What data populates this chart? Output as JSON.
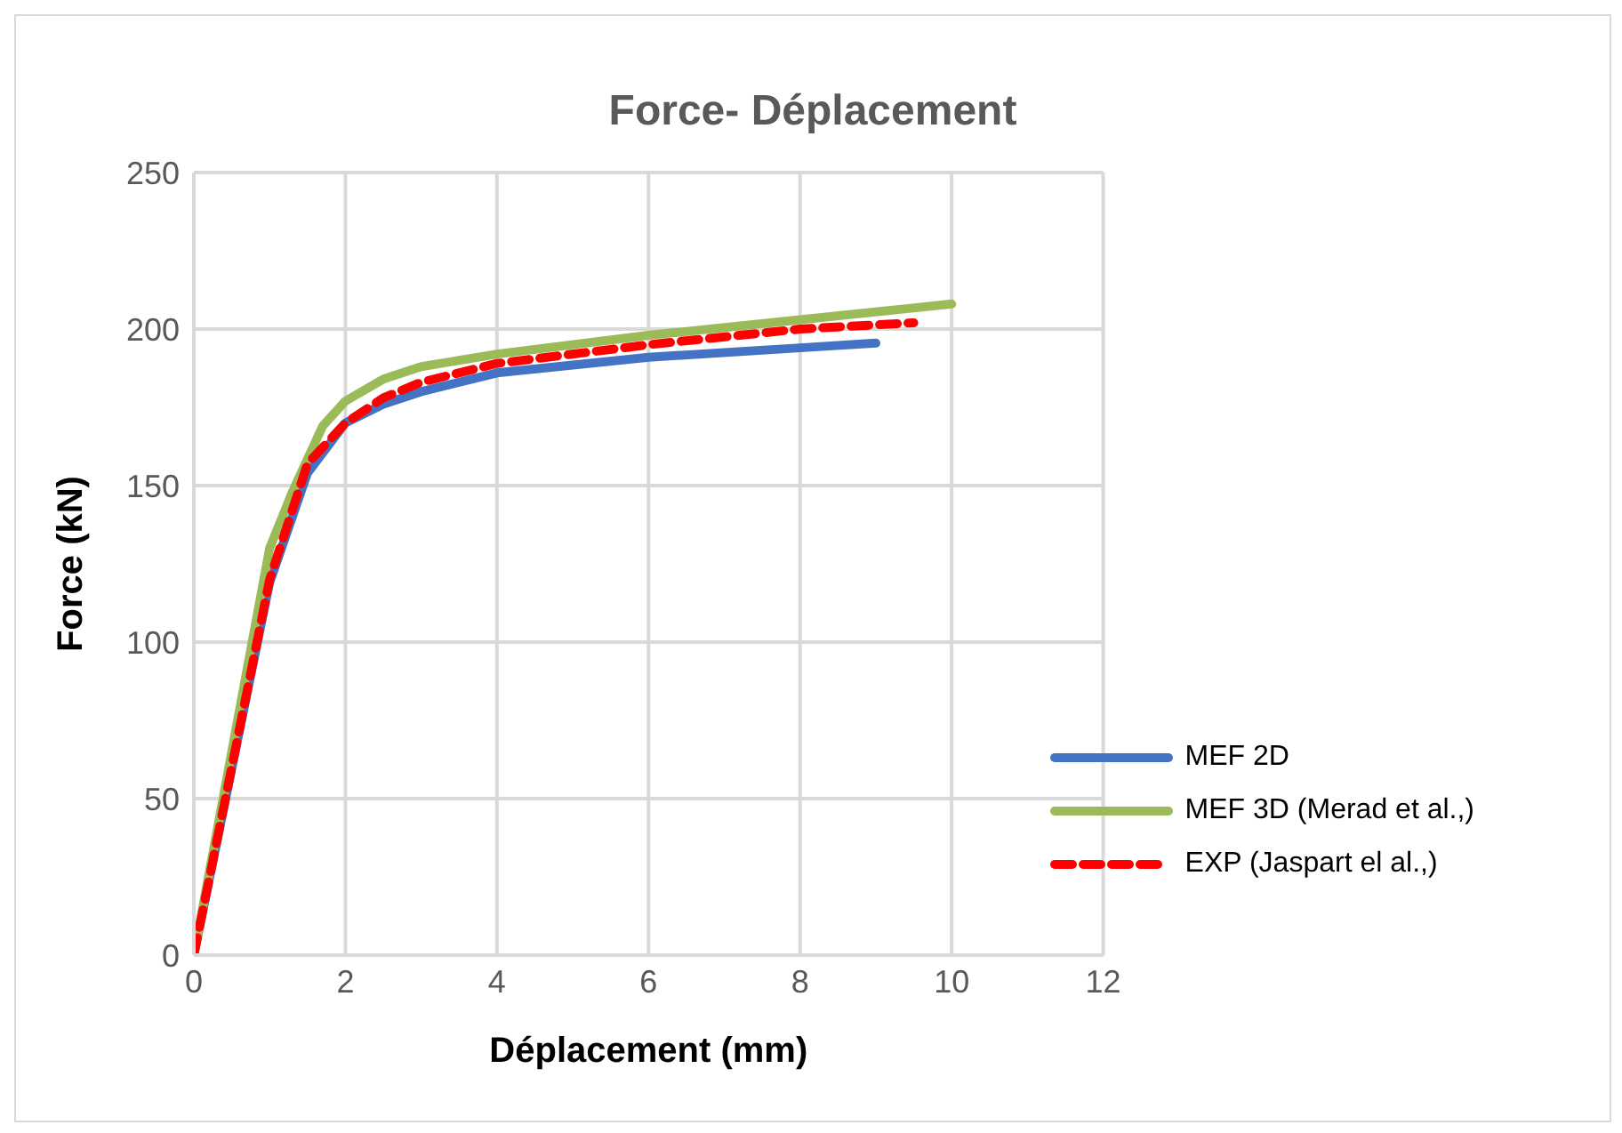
{
  "chart_data": {
    "type": "line",
    "title": "Force- Déplacement",
    "xlabel": "Déplacement (mm)",
    "ylabel": "Force (kN)",
    "xlim": [
      0,
      12
    ],
    "xticks": [
      0,
      2,
      4,
      6,
      8,
      10,
      12
    ],
    "ylim": [
      0,
      250
    ],
    "yticks": [
      0,
      50,
      100,
      150,
      200,
      250
    ],
    "grid": true,
    "legend": "bottom right",
    "marker": "none",
    "series": [
      {
        "name": "MEF 2D",
        "color": "#4472c4",
        "line_style": "solid",
        "x": [
          0,
          1,
          1.5,
          2,
          2.5,
          3,
          4,
          6,
          8,
          9
        ],
        "values": [
          0,
          119,
          154,
          170,
          176,
          180,
          186,
          191,
          194,
          195.5
        ]
      },
      {
        "name": "MEF 3D (Merad et al.,)",
        "color": "#9bbb59",
        "line_style": "solid",
        "x": [
          0,
          1,
          1.3,
          1.7,
          2,
          2.5,
          3,
          4,
          6,
          8,
          10
        ],
        "values": [
          0,
          130,
          148,
          169,
          177,
          184,
          188,
          192,
          198,
          203,
          208
        ]
      },
      {
        "name": "EXP (Jaspart el al.,)",
        "color": "#ff0000",
        "line_style": "dashed",
        "x": [
          0,
          1,
          1.5,
          2,
          2.5,
          3,
          4,
          6,
          8,
          9.5
        ],
        "values": [
          0,
          120,
          157,
          170,
          178,
          183,
          189,
          195,
          200,
          202
        ]
      }
    ]
  }
}
